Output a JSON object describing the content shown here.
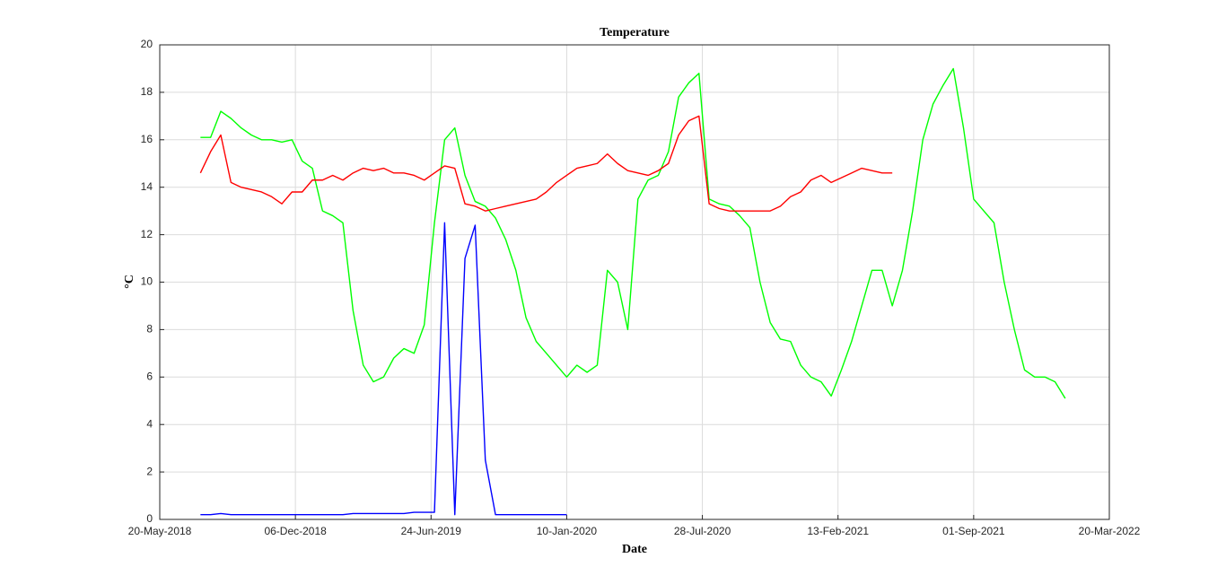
{
  "chart_data": {
    "type": "line",
    "title": "Temperature",
    "xlabel": "Date",
    "ylabel": "°C",
    "xlim": [
      "2018-05-20",
      "2022-03-20"
    ],
    "xticks": [
      {
        "value": "2018-05-20",
        "label": "20-May-2018"
      },
      {
        "value": "2018-12-06",
        "label": "06-Dec-2018"
      },
      {
        "value": "2019-06-24",
        "label": "24-Jun-2019"
      },
      {
        "value": "2020-01-10",
        "label": "10-Jan-2020"
      },
      {
        "value": "2020-07-28",
        "label": "28-Jul-2020"
      },
      {
        "value": "2021-02-13",
        "label": "13-Feb-2021"
      },
      {
        "value": "2021-09-01",
        "label": "01-Sep-2021"
      },
      {
        "value": "2022-03-20",
        "label": "20-Mar-2022"
      }
    ],
    "ylim": [
      0,
      20
    ],
    "yticks": [
      0,
      2,
      4,
      6,
      8,
      10,
      12,
      14,
      16,
      18,
      20
    ],
    "grid": true,
    "x": [
      "2018-07-19",
      "2018-08-03",
      "2018-08-18",
      "2018-09-02",
      "2018-09-17",
      "2018-10-02",
      "2018-10-17",
      "2018-11-01",
      "2018-11-16",
      "2018-12-01",
      "2018-12-16",
      "2018-12-31",
      "2019-01-15",
      "2019-01-30",
      "2019-02-14",
      "2019-03-01",
      "2019-03-16",
      "2019-03-31",
      "2019-04-15",
      "2019-04-30",
      "2019-05-15",
      "2019-05-30",
      "2019-06-14",
      "2019-06-29",
      "2019-07-14",
      "2019-07-29",
      "2019-08-13",
      "2019-08-28",
      "2019-09-12",
      "2019-09-27",
      "2019-10-12",
      "2019-10-27",
      "2019-11-11",
      "2019-11-26",
      "2019-12-11",
      "2019-12-26",
      "2020-01-10",
      "2020-01-25",
      "2020-02-09",
      "2020-02-24",
      "2020-03-10",
      "2020-03-25",
      "2020-04-09",
      "2020-04-24",
      "2020-05-09",
      "2020-05-24",
      "2020-06-08",
      "2020-06-23",
      "2020-07-08",
      "2020-07-23",
      "2020-08-07",
      "2020-08-22",
      "2020-09-06",
      "2020-09-21",
      "2020-10-06",
      "2020-10-21",
      "2020-11-05",
      "2020-11-20",
      "2020-12-05",
      "2020-12-20",
      "2021-01-04",
      "2021-01-19",
      "2021-02-03",
      "2021-02-18",
      "2021-03-05",
      "2021-03-20",
      "2021-04-04",
      "2021-04-19",
      "2021-05-04",
      "2021-05-19",
      "2021-06-03",
      "2021-06-18",
      "2021-07-03",
      "2021-07-18",
      "2021-08-02",
      "2021-08-17",
      "2021-09-01",
      "2021-09-16",
      "2021-10-01",
      "2021-10-16",
      "2021-10-31",
      "2021-11-15",
      "2021-11-30",
      "2021-12-15",
      "2021-12-30",
      "2022-01-14"
    ],
    "series": [
      {
        "color": "#00ff00",
        "values": [
          16.1,
          16.1,
          17.2,
          16.9,
          16.5,
          16.2,
          16.0,
          16.0,
          15.9,
          16.0,
          15.1,
          14.8,
          13.0,
          12.8,
          12.5,
          8.8,
          6.5,
          5.8,
          6.0,
          6.8,
          7.2,
          7.0,
          8.2,
          12.5,
          16.0,
          16.5,
          14.5,
          13.4,
          13.2,
          12.7,
          11.8,
          10.5,
          8.5,
          7.5,
          7.0,
          6.5,
          6.0,
          6.5,
          6.2,
          6.5,
          10.5,
          10.0,
          8.0,
          13.5,
          14.3,
          14.5,
          15.5,
          17.8,
          18.4,
          18.8,
          13.5,
          13.3,
          13.2,
          12.8,
          12.3,
          10.0,
          8.3,
          7.6,
          7.5,
          6.5,
          6.0,
          5.8,
          5.2,
          6.3,
          7.5,
          9.0,
          10.5,
          10.5,
          9.0,
          10.5,
          13.0,
          16.0,
          17.5,
          18.3,
          19.0,
          16.5,
          13.5,
          13.0,
          12.5,
          10.0,
          8.0,
          6.3,
          6.0,
          6.0,
          5.8,
          5.1
        ]
      },
      {
        "color": "#ff0000",
        "values": [
          14.6,
          15.5,
          16.2,
          14.2,
          14.0,
          13.9,
          13.8,
          13.6,
          13.3,
          13.8,
          13.8,
          14.3,
          14.3,
          14.5,
          14.3,
          14.6,
          14.8,
          14.7,
          14.8,
          14.6,
          14.6,
          14.5,
          14.3,
          14.6,
          14.9,
          14.8,
          13.3,
          13.2,
          13.0,
          13.1,
          13.2,
          13.3,
          13.4,
          13.5,
          13.8,
          14.2,
          14.5,
          14.8,
          14.9,
          15.0,
          15.4,
          15.0,
          14.7,
          14.6,
          14.5,
          14.7,
          15.0,
          16.2,
          16.8,
          17.0,
          13.3,
          13.1,
          13.0,
          13.0,
          13.0,
          13.0,
          13.0,
          13.2,
          13.6,
          13.8,
          14.3,
          14.5,
          14.2,
          14.4,
          14.6,
          14.8,
          14.7,
          14.6,
          14.6,
          null,
          null,
          null,
          null,
          null,
          null,
          null,
          null,
          null,
          null,
          null,
          null,
          null,
          null,
          null,
          null,
          null
        ]
      },
      {
        "color": "#0000ff",
        "values": [
          0.2,
          0.2,
          0.25,
          0.2,
          0.2,
          0.2,
          0.2,
          0.2,
          0.2,
          0.2,
          0.2,
          0.2,
          0.2,
          0.2,
          0.2,
          0.25,
          0.25,
          0.25,
          0.25,
          0.25,
          0.25,
          0.3,
          0.3,
          0.3,
          12.5,
          0.2,
          11.0,
          12.4,
          2.5,
          0.2,
          0.2,
          0.2,
          0.2,
          0.2,
          0.2,
          0.2,
          0.2,
          null,
          null,
          null,
          null,
          null,
          null,
          null,
          null,
          null,
          null,
          null,
          null,
          null,
          null,
          null,
          null,
          null,
          null,
          null,
          null,
          null,
          null,
          null,
          null,
          null,
          null,
          null,
          null,
          null,
          null,
          null,
          null,
          null,
          null,
          null,
          null,
          null,
          null,
          null,
          null,
          null,
          null,
          null,
          null,
          null,
          null,
          null,
          null,
          null
        ]
      }
    ]
  }
}
